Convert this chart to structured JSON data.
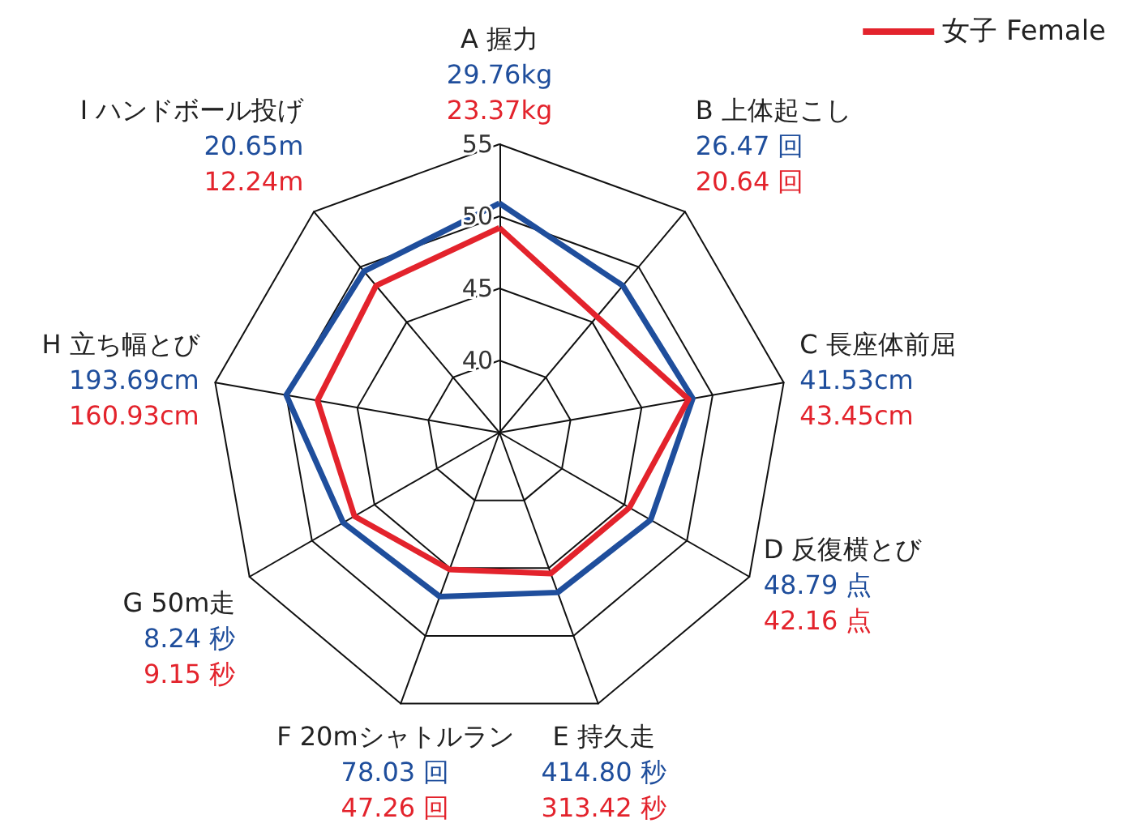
{
  "chart_data": {
    "type": "radar",
    "categories": [
      "A 握力",
      "B 上体起こし",
      "C 長座体前屈",
      "D 反復横とび",
      "E 持久走",
      "F 20mシャトルラン",
      "G 50m走",
      "H 立ち幅とび",
      "I ハンドボール投げ"
    ],
    "series": [
      {
        "color": "#1f4e9c",
        "values": [
          50.9,
          48.3,
          48.6,
          47.1,
          46.8,
          47.1,
          47.5,
          50.0,
          49.6
        ]
      },
      {
        "name": "女子 Female",
        "color": "#e3232c",
        "values": [
          49.2,
          45.5,
          48.3,
          45.4,
          45.4,
          45.1,
          46.6,
          47.8,
          48.3
        ]
      }
    ],
    "annotations": [
      "29.76kg",
      "26.47 回",
      "41.53cm",
      "48.79 点",
      "414.80 秒",
      "78.03 回",
      "8.24 秒",
      "193.69cm",
      "20.65m",
      "23.37kg",
      "20.64 回",
      "43.45cm",
      "42.16 点",
      "313.42 秒",
      "47.26 回",
      "9.15 秒",
      "160.93cm",
      "12.24m"
    ],
    "ylim": [
      35,
      55
    ],
    "yticks": [
      40,
      45,
      50,
      55
    ],
    "grid": true,
    "legend": "top right",
    "marker": "none",
    "line_style": "solid"
  }
}
